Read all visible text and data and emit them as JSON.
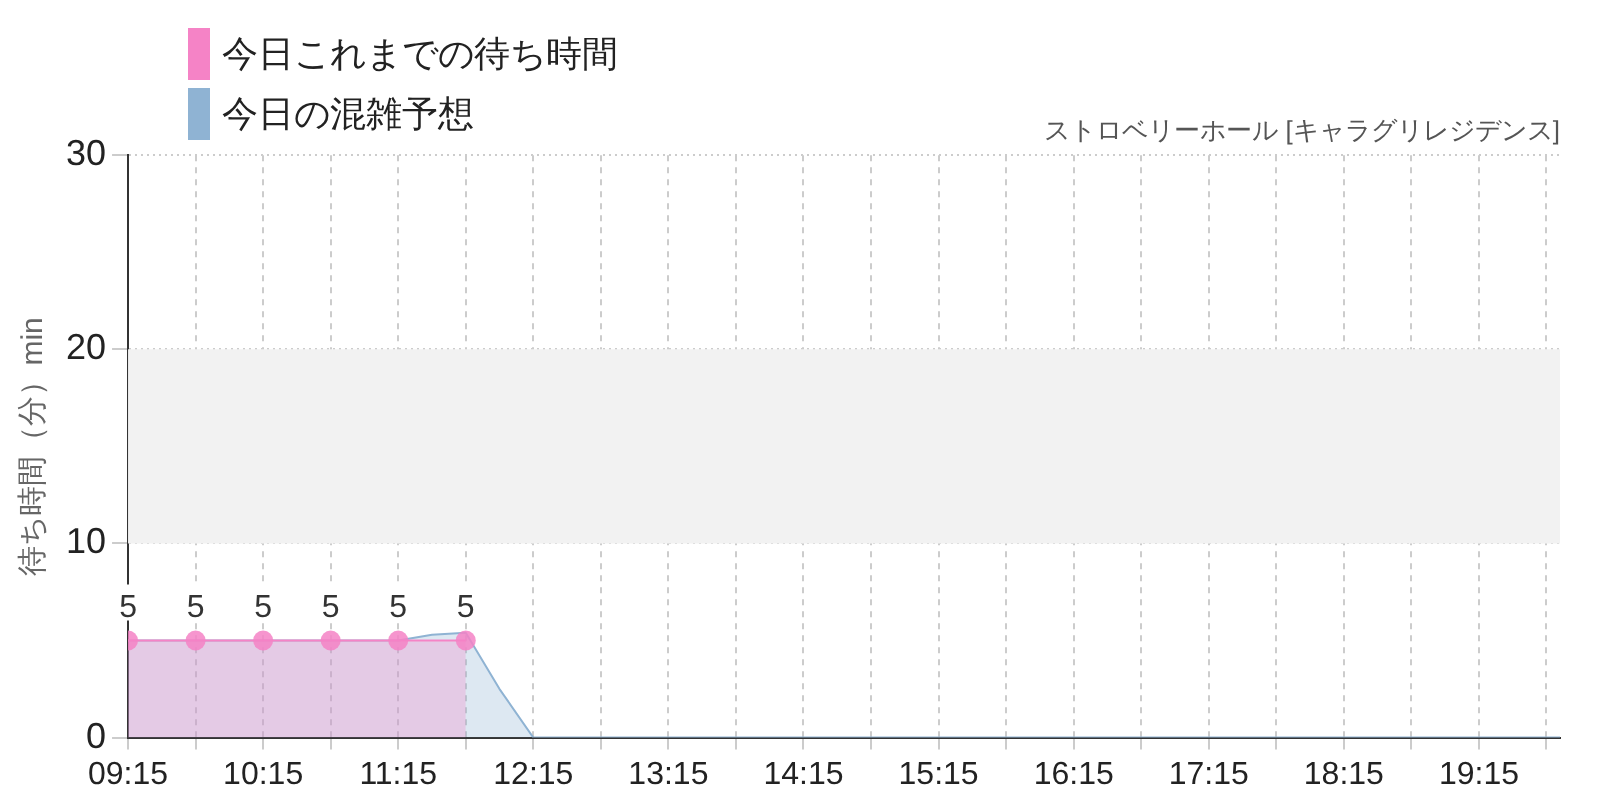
{
  "chart_data": {
    "type": "area",
    "subtitle": "ストロベリーホール [キャラグリレジデンス]",
    "ylabel": "待ち時間（分）min",
    "series": [
      {
        "name": "今日これまでの待ち時間",
        "color": "#f583c6",
        "marker": "circle",
        "x": [
          9.25,
          9.75,
          10.25,
          10.75,
          11.25,
          11.75
        ],
        "values": [
          5,
          5,
          5,
          5,
          5,
          5
        ],
        "value_labels": [
          "5",
          "5",
          "5",
          "5",
          "5",
          "5"
        ]
      },
      {
        "name": "今日の混雑予想",
        "color": "#8fb3d3",
        "marker": "none",
        "x": [
          9.25,
          9.75,
          10.25,
          10.75,
          11.25,
          11.5,
          11.75,
          12.0,
          12.25,
          12.75,
          13.25,
          14.25,
          15.25,
          16.25,
          17.25,
          18.25,
          19.25,
          19.85
        ],
        "values": [
          5,
          5,
          5,
          5,
          5,
          5.3,
          5.4,
          2.5,
          0,
          0,
          0,
          0,
          0,
          0,
          0,
          0,
          0,
          0
        ]
      }
    ],
    "xlim": [
      9.25,
      19.85
    ],
    "xticks": [
      {
        "value": 9.25,
        "label": "09:15"
      },
      {
        "value": 9.75,
        "label": null
      },
      {
        "value": 10.25,
        "label": "10:15"
      },
      {
        "value": 10.75,
        "label": null
      },
      {
        "value": 11.25,
        "label": "11:15"
      },
      {
        "value": 11.75,
        "label": null
      },
      {
        "value": 12.25,
        "label": "12:15"
      },
      {
        "value": 12.75,
        "label": null
      },
      {
        "value": 13.25,
        "label": "13:15"
      },
      {
        "value": 13.75,
        "label": null
      },
      {
        "value": 14.25,
        "label": "14:15"
      },
      {
        "value": 14.75,
        "label": null
      },
      {
        "value": 15.25,
        "label": "15:15"
      },
      {
        "value": 15.75,
        "label": null
      },
      {
        "value": 16.25,
        "label": "16:15"
      },
      {
        "value": 16.75,
        "label": null
      },
      {
        "value": 17.25,
        "label": "17:15"
      },
      {
        "value": 17.75,
        "label": null
      },
      {
        "value": 18.25,
        "label": "18:15"
      },
      {
        "value": 18.75,
        "label": null
      },
      {
        "value": 19.25,
        "label": "19:15"
      },
      {
        "value": 19.75,
        "label": null
      }
    ],
    "ylim": [
      0,
      30
    ],
    "yticks": [
      0,
      10,
      20,
      30
    ],
    "bands": [
      {
        "axis": "y",
        "from": 10,
        "to": 20,
        "color": "#f2f2f2"
      }
    ],
    "grid": true,
    "legend": "top left"
  }
}
